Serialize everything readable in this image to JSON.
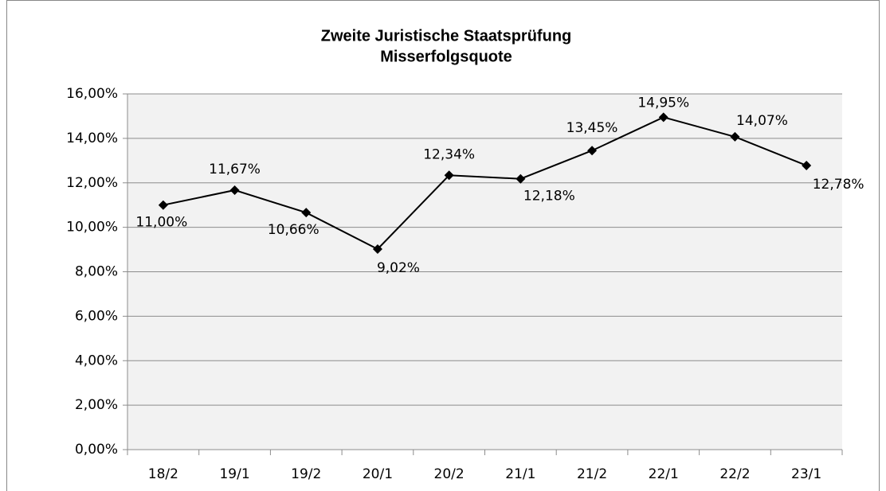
{
  "chart_data": {
    "type": "line",
    "title": "Zweite Juristische Staatsprüfung",
    "subtitle": "Misserfolgsquote",
    "categories": [
      "18/2",
      "19/1",
      "19/2",
      "20/1",
      "20/2",
      "21/1",
      "21/2",
      "22/1",
      "22/2",
      "23/1"
    ],
    "values": [
      11.0,
      11.67,
      10.66,
      9.02,
      12.34,
      12.18,
      13.45,
      14.95,
      14.07,
      12.78
    ],
    "value_labels": [
      "11,00%",
      "11,67%",
      "10,66%",
      "9,02%",
      "12,34%",
      "12,18%",
      "13,45%",
      "14,95%",
      "14,07%",
      "12,78%"
    ],
    "color": "#000000",
    "ylim": [
      0,
      16
    ],
    "yticks": [
      {
        "value": 0,
        "label": "0,00%"
      },
      {
        "value": 2,
        "label": "2,00%"
      },
      {
        "value": 4,
        "label": "4,00%"
      },
      {
        "value": 6,
        "label": "6,00%"
      },
      {
        "value": 8,
        "label": "8,00%"
      },
      {
        "value": 10,
        "label": "10,00%"
      },
      {
        "value": 12,
        "label": "12,00%"
      },
      {
        "value": 14,
        "label": "14,00%"
      },
      {
        "value": 16,
        "label": "16,00%"
      }
    ],
    "grid": true
  }
}
